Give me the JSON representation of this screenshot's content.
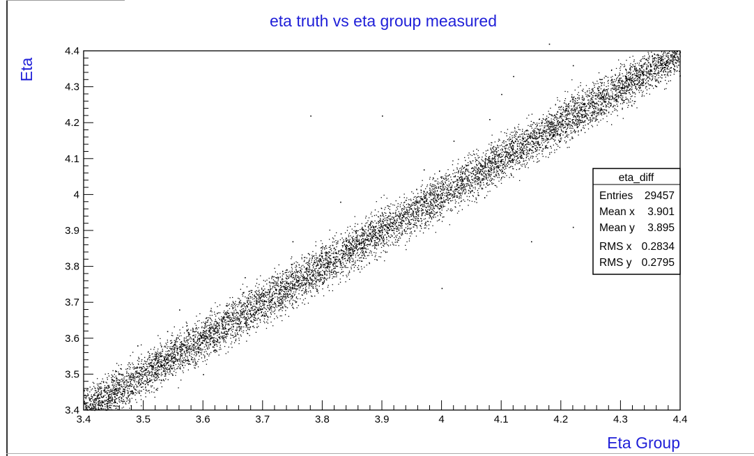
{
  "chart_data": {
    "type": "scatter",
    "title": "eta truth vs eta group measured",
    "xlabel": "Eta Group",
    "ylabel": "Eta",
    "xlim": [
      3.4,
      4.4
    ],
    "ylim": [
      3.4,
      4.4
    ],
    "x_ticks": [
      "3.4",
      "3.5",
      "3.6",
      "3.7",
      "3.8",
      "3.9",
      "4",
      "4.1",
      "4.2",
      "4.3",
      "4.4"
    ],
    "y_ticks": [
      "3.4",
      "3.5",
      "3.6",
      "3.7",
      "3.8",
      "3.9",
      "4",
      "4.1",
      "4.2",
      "4.3",
      "4.4"
    ],
    "grid": false,
    "marker_color": "#000000",
    "text_color": "#1f1fd8",
    "band": {
      "relation": "y ≈ x",
      "x_range": [
        3.4,
        4.4
      ],
      "spread_y": 0.03
    },
    "outliers": [
      [
        3.78,
        4.22
      ],
      [
        3.9,
        4.22
      ],
      [
        4.02,
        4.15
      ],
      [
        4.1,
        4.28
      ],
      [
        4.18,
        4.42
      ],
      [
        4.22,
        4.36
      ],
      [
        4.35,
        4.36
      ],
      [
        3.65,
        3.7
      ],
      [
        3.54,
        3.62
      ],
      [
        3.49,
        3.58
      ],
      [
        3.67,
        3.77
      ],
      [
        3.52,
        3.55
      ],
      [
        3.6,
        3.5
      ],
      [
        3.56,
        3.68
      ],
      [
        4.0,
        3.74
      ],
      [
        4.31,
        4.06
      ],
      [
        4.3,
        3.95
      ],
      [
        4.15,
        3.87
      ],
      [
        4.22,
        3.91
      ],
      [
        3.97,
        4.07
      ],
      [
        3.83,
        3.98
      ],
      [
        3.75,
        3.87
      ],
      [
        4.08,
        4.21
      ],
      [
        4.12,
        4.33
      ],
      [
        4.27,
        4.05
      ]
    ],
    "stats_box": {
      "title": "eta_diff",
      "rows": [
        {
          "label": "Entries",
          "value": "29457"
        },
        {
          "label": "Mean x",
          "value": "3.901"
        },
        {
          "label": "Mean y",
          "value": "3.895"
        },
        {
          "label": "RMS x",
          "value": "0.2834"
        },
        {
          "label": "RMS y",
          "value": "0.2795"
        }
      ]
    }
  }
}
